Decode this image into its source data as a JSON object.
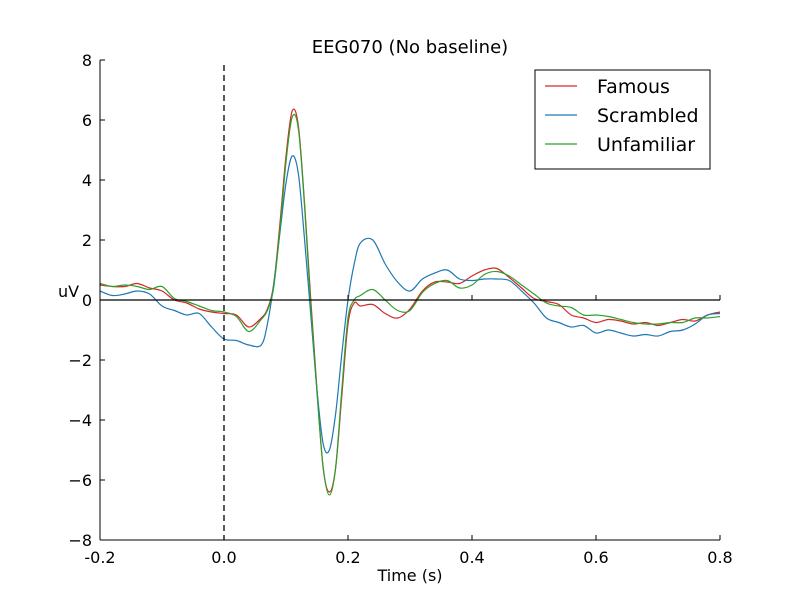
{
  "chart_data": {
    "type": "line",
    "title": "EEG070 (No baseline)",
    "xlabel": "Time (s)",
    "ylabel": "uV",
    "xlim": [
      -0.2,
      0.8
    ],
    "ylim": [
      -8,
      8
    ],
    "xticks": [
      -0.2,
      0.0,
      0.2,
      0.4,
      0.6,
      0.8
    ],
    "xtick_labels": [
      "-0.2",
      "0.0",
      "0.2",
      "0.4",
      "0.6",
      "0.8"
    ],
    "yticks": [
      -8,
      -6,
      -4,
      -2,
      0,
      2,
      4,
      6,
      8
    ],
    "ytick_labels": [
      "−8",
      "−6",
      "−4",
      "−2",
      "0",
      "2",
      "4",
      "6",
      "8"
    ],
    "zero_line": true,
    "stimulus_onset_line": 0.0,
    "grid": false,
    "legend_position": "top-right",
    "series": [
      {
        "name": "Famous",
        "color": "#d62728",
        "points": [
          [
            -0.2,
            0.5
          ],
          [
            -0.18,
            0.45
          ],
          [
            -0.16,
            0.45
          ],
          [
            -0.14,
            0.55
          ],
          [
            -0.12,
            0.4
          ],
          [
            -0.1,
            0.3
          ],
          [
            -0.08,
            0.0
          ],
          [
            -0.06,
            -0.1
          ],
          [
            -0.04,
            -0.3
          ],
          [
            -0.02,
            -0.4
          ],
          [
            0.0,
            -0.45
          ],
          [
            0.02,
            -0.5
          ],
          [
            0.04,
            -0.9
          ],
          [
            0.06,
            -0.6
          ],
          [
            0.07,
            -0.3
          ],
          [
            0.08,
            0.5
          ],
          [
            0.09,
            2.5
          ],
          [
            0.1,
            4.8
          ],
          [
            0.11,
            6.3
          ],
          [
            0.12,
            5.8
          ],
          [
            0.13,
            3.2
          ],
          [
            0.14,
            0.0
          ],
          [
            0.15,
            -3.0
          ],
          [
            0.16,
            -5.6
          ],
          [
            0.17,
            -6.4
          ],
          [
            0.18,
            -5.6
          ],
          [
            0.19,
            -3.2
          ],
          [
            0.2,
            -0.8
          ],
          [
            0.21,
            -0.1
          ],
          [
            0.22,
            -0.2
          ],
          [
            0.24,
            -0.15
          ],
          [
            0.26,
            -0.45
          ],
          [
            0.28,
            -0.6
          ],
          [
            0.3,
            -0.3
          ],
          [
            0.32,
            0.3
          ],
          [
            0.34,
            0.6
          ],
          [
            0.36,
            0.6
          ],
          [
            0.38,
            0.55
          ],
          [
            0.4,
            0.8
          ],
          [
            0.42,
            1.0
          ],
          [
            0.44,
            1.05
          ],
          [
            0.46,
            0.75
          ],
          [
            0.48,
            0.4
          ],
          [
            0.5,
            0.05
          ],
          [
            0.52,
            -0.05
          ],
          [
            0.54,
            -0.15
          ],
          [
            0.56,
            -0.5
          ],
          [
            0.58,
            -0.6
          ],
          [
            0.6,
            -0.75
          ],
          [
            0.62,
            -0.65
          ],
          [
            0.64,
            -0.7
          ],
          [
            0.66,
            -0.8
          ],
          [
            0.68,
            -0.75
          ],
          [
            0.7,
            -0.85
          ],
          [
            0.72,
            -0.75
          ],
          [
            0.74,
            -0.65
          ],
          [
            0.76,
            -0.7
          ],
          [
            0.78,
            -0.5
          ],
          [
            0.8,
            -0.4
          ]
        ]
      },
      {
        "name": "Scrambled",
        "color": "#1f77b4",
        "points": [
          [
            -0.2,
            0.3
          ],
          [
            -0.18,
            0.15
          ],
          [
            -0.16,
            0.2
          ],
          [
            -0.14,
            0.3
          ],
          [
            -0.12,
            0.2
          ],
          [
            -0.1,
            -0.2
          ],
          [
            -0.08,
            -0.35
          ],
          [
            -0.06,
            -0.5
          ],
          [
            -0.04,
            -0.45
          ],
          [
            -0.02,
            -0.9
          ],
          [
            0.0,
            -1.3
          ],
          [
            0.02,
            -1.35
          ],
          [
            0.04,
            -1.5
          ],
          [
            0.06,
            -1.5
          ],
          [
            0.07,
            -0.8
          ],
          [
            0.08,
            0.5
          ],
          [
            0.09,
            2.2
          ],
          [
            0.1,
            3.9
          ],
          [
            0.11,
            4.8
          ],
          [
            0.12,
            4.2
          ],
          [
            0.13,
            2.0
          ],
          [
            0.14,
            -0.5
          ],
          [
            0.15,
            -3.0
          ],
          [
            0.16,
            -4.8
          ],
          [
            0.17,
            -5.0
          ],
          [
            0.18,
            -3.8
          ],
          [
            0.19,
            -1.8
          ],
          [
            0.2,
            0.0
          ],
          [
            0.21,
            1.2
          ],
          [
            0.22,
            1.9
          ],
          [
            0.24,
            2.0
          ],
          [
            0.26,
            1.2
          ],
          [
            0.28,
            0.6
          ],
          [
            0.3,
            0.3
          ],
          [
            0.32,
            0.7
          ],
          [
            0.34,
            0.9
          ],
          [
            0.36,
            1.0
          ],
          [
            0.38,
            0.7
          ],
          [
            0.4,
            0.65
          ],
          [
            0.42,
            0.7
          ],
          [
            0.44,
            0.7
          ],
          [
            0.46,
            0.65
          ],
          [
            0.48,
            0.3
          ],
          [
            0.5,
            -0.1
          ],
          [
            0.52,
            -0.6
          ],
          [
            0.54,
            -0.75
          ],
          [
            0.56,
            -0.9
          ],
          [
            0.58,
            -0.85
          ],
          [
            0.6,
            -1.1
          ],
          [
            0.62,
            -1.0
          ],
          [
            0.64,
            -1.1
          ],
          [
            0.66,
            -1.2
          ],
          [
            0.68,
            -1.15
          ],
          [
            0.7,
            -1.2
          ],
          [
            0.72,
            -1.05
          ],
          [
            0.74,
            -1.0
          ],
          [
            0.76,
            -0.8
          ],
          [
            0.78,
            -0.5
          ],
          [
            0.8,
            -0.45
          ]
        ]
      },
      {
        "name": "Unfamiliar",
        "color": "#2ca02c",
        "points": [
          [
            -0.2,
            0.55
          ],
          [
            -0.18,
            0.45
          ],
          [
            -0.16,
            0.5
          ],
          [
            -0.14,
            0.45
          ],
          [
            -0.12,
            0.35
          ],
          [
            -0.1,
            0.45
          ],
          [
            -0.08,
            0.05
          ],
          [
            -0.06,
            -0.05
          ],
          [
            -0.04,
            -0.2
          ],
          [
            -0.02,
            -0.35
          ],
          [
            0.0,
            -0.4
          ],
          [
            0.02,
            -0.55
          ],
          [
            0.04,
            -1.05
          ],
          [
            0.06,
            -0.65
          ],
          [
            0.07,
            -0.35
          ],
          [
            0.08,
            0.4
          ],
          [
            0.09,
            2.3
          ],
          [
            0.1,
            4.6
          ],
          [
            0.11,
            6.1
          ],
          [
            0.12,
            5.7
          ],
          [
            0.13,
            3.1
          ],
          [
            0.14,
            -0.2
          ],
          [
            0.15,
            -3.1
          ],
          [
            0.16,
            -5.6
          ],
          [
            0.17,
            -6.5
          ],
          [
            0.18,
            -5.6
          ],
          [
            0.19,
            -3.0
          ],
          [
            0.2,
            -0.6
          ],
          [
            0.21,
            0.0
          ],
          [
            0.22,
            0.15
          ],
          [
            0.24,
            0.35
          ],
          [
            0.26,
            0.0
          ],
          [
            0.28,
            -0.35
          ],
          [
            0.3,
            -0.35
          ],
          [
            0.32,
            0.25
          ],
          [
            0.34,
            0.55
          ],
          [
            0.36,
            0.65
          ],
          [
            0.38,
            0.4
          ],
          [
            0.4,
            0.5
          ],
          [
            0.42,
            0.85
          ],
          [
            0.44,
            0.95
          ],
          [
            0.46,
            0.8
          ],
          [
            0.48,
            0.5
          ],
          [
            0.5,
            0.2
          ],
          [
            0.52,
            -0.1
          ],
          [
            0.54,
            -0.2
          ],
          [
            0.56,
            -0.25
          ],
          [
            0.58,
            -0.5
          ],
          [
            0.6,
            -0.5
          ],
          [
            0.62,
            -0.55
          ],
          [
            0.64,
            -0.65
          ],
          [
            0.66,
            -0.75
          ],
          [
            0.68,
            -0.8
          ],
          [
            0.7,
            -0.8
          ],
          [
            0.72,
            -0.75
          ],
          [
            0.74,
            -0.75
          ],
          [
            0.76,
            -0.6
          ],
          [
            0.78,
            -0.6
          ],
          [
            0.8,
            -0.55
          ]
        ]
      }
    ]
  }
}
